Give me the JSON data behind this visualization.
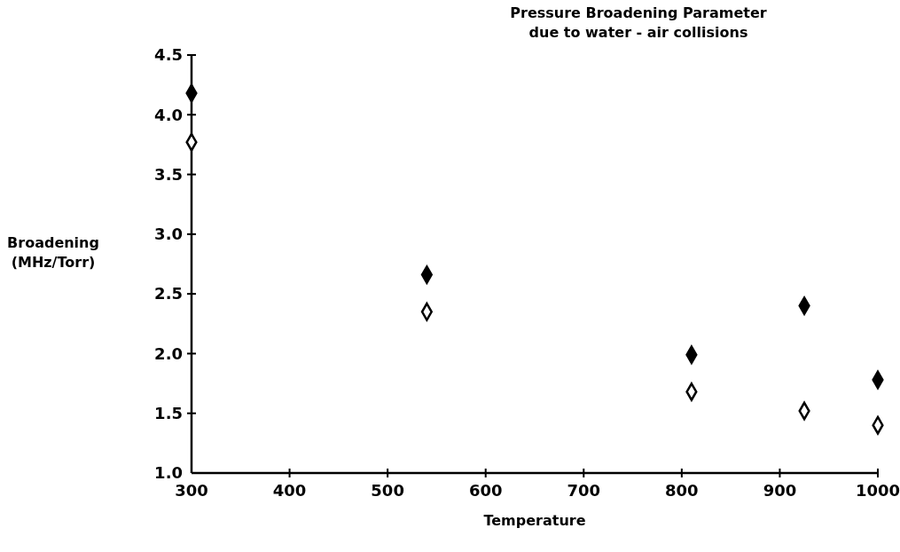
{
  "chart_data": {
    "type": "scatter",
    "title": "Pressure Broadening Parameter\ndue to water - air collisions",
    "xlabel": "Temperature",
    "ylabel": "Broadening\n(MHz/Torr)",
    "x": [
      300,
      540,
      810,
      925,
      1000
    ],
    "series": [
      {
        "color": "#000000",
        "values": [
          4.18,
          2.66,
          1.99,
          2.4,
          1.78
        ]
      },
      {
        "color": "#ffffff",
        "values": [
          3.77,
          2.35,
          1.68,
          1.52,
          1.4
        ]
      }
    ],
    "xlim": [
      300,
      1000
    ],
    "xticks": [
      300,
      400,
      500,
      600,
      700,
      800,
      900,
      1000
    ],
    "ylim": [
      1.0,
      4.5
    ],
    "yticks": [
      {
        "value": 1,
        "label": "1.0"
      },
      1.5,
      {
        "value": 2,
        "label": "2.0"
      },
      2.5,
      {
        "value": 3,
        "label": "3.0"
      },
      3.5,
      {
        "value": 4,
        "label": "4.0"
      },
      4.5
    ],
    "marker": "diamond",
    "grid": false
  }
}
